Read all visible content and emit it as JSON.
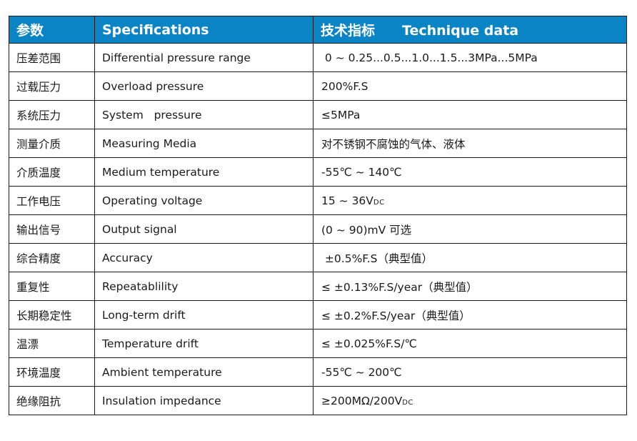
{
  "header": {
    "param": "参数",
    "specifications": "Specifications",
    "tech_cn": "技术指标",
    "tech_en": "Technique data"
  },
  "header_color": "#0b84c6",
  "rows": [
    {
      "cn": "压差范围",
      "en": "Differential pressure range",
      "value": " 0 ~ 0.25...0.5...1.0...1.5...3MPa...5MPa",
      "sub": ""
    },
    {
      "cn": "过载压力",
      "en": "Overload pressure",
      "value": "200%F.S",
      "sub": ""
    },
    {
      "cn": "系统压力",
      "en": "System   pressure",
      "value": "≤5MPa",
      "sub": ""
    },
    {
      "cn": "测量介质",
      "en": "Measuring Media",
      "value": "对不锈钢不腐蚀的气体、液体",
      "sub": ""
    },
    {
      "cn": "介质温度",
      "en": "Medium temperature",
      "value": "-55℃ ~ 140℃",
      "sub": ""
    },
    {
      "cn": "工作电压",
      "en": "Operating voltage",
      "value": "15 ~ 36V",
      "sub": "DC"
    },
    {
      "cn": "输出信号",
      "en": "Output signal",
      "value": "(0 ~ 90)mV 可选",
      "sub": ""
    },
    {
      "cn": "综合精度",
      "en": "Accuracy",
      "value": " ±0.5%F.S（典型值）",
      "sub": ""
    },
    {
      "cn": "重复性",
      "en": "Repeatablility",
      "value": "≤ ±0.13%F.S/year（典型值）",
      "sub": ""
    },
    {
      "cn": "长期稳定性",
      "en": "Long-term drift",
      "value": "≤ ±0.2%F.S/year（典型值）",
      "sub": ""
    },
    {
      "cn": "温漂",
      "en": "Temperature drift",
      "value": "≤ ±0.025%F.S/℃",
      "sub": ""
    },
    {
      "cn": "环境温度",
      "en": "Ambient temperature",
      "value": "-55℃ ~ 200℃",
      "sub": ""
    },
    {
      "cn": "绝缘阻抗",
      "en": "Insulation impedance",
      "value": "≥200MΩ/200V",
      "sub": "DC"
    }
  ]
}
